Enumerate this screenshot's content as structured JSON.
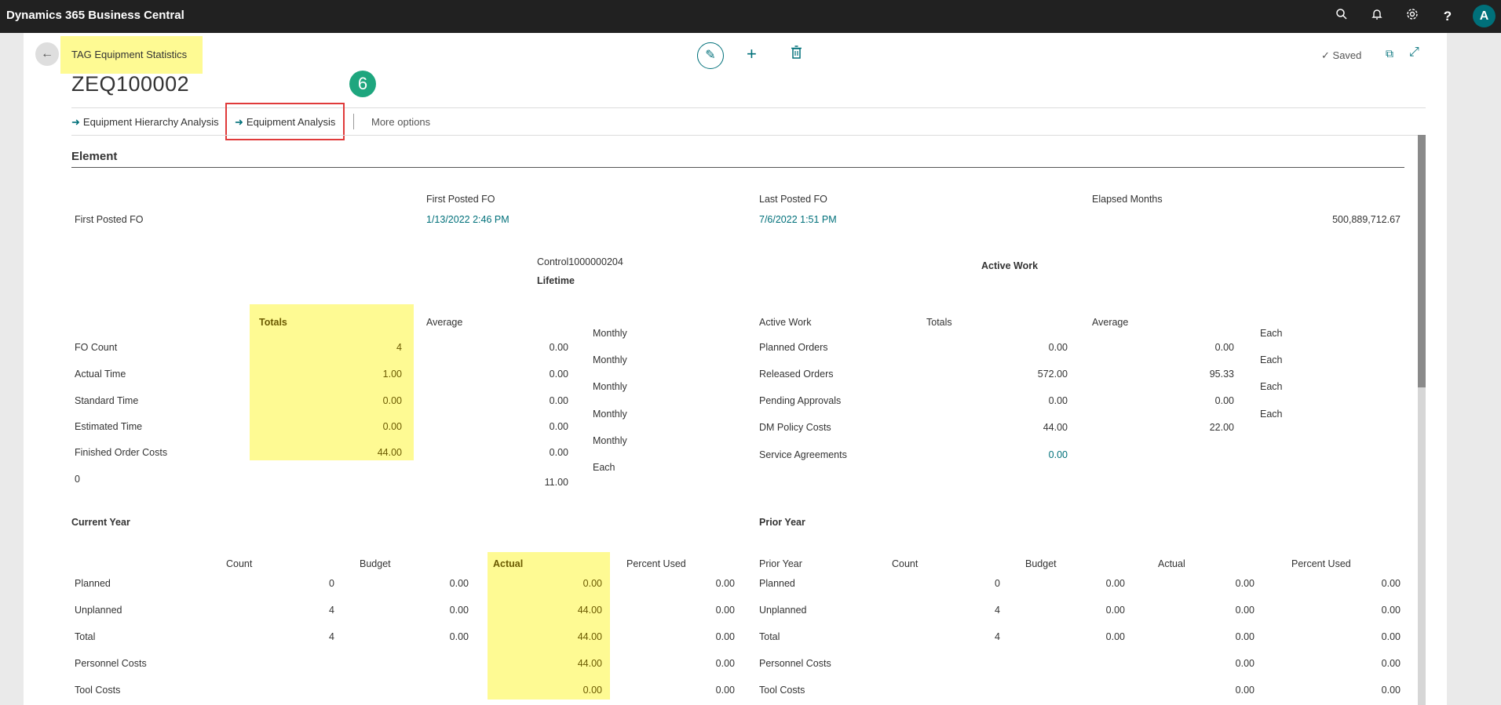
{
  "app": {
    "title": "Dynamics 365 Business Central"
  },
  "topbar_icons": [
    "search-icon",
    "bell-icon",
    "gear-icon",
    "help-icon"
  ],
  "user": {
    "initial": "A"
  },
  "page": {
    "title": "TAG Equipment Statistics",
    "record_no": "ZEQ100002",
    "saved_label": "Saved",
    "step_badge": "6"
  },
  "actions": {
    "hierarchy": "Equipment Hierarchy Analysis",
    "analysis": "Equipment Analysis",
    "more": "More options"
  },
  "element": {
    "title": "Element",
    "row_label": "First Posted FO",
    "first_posted_header": "First Posted FO",
    "first_posted_value": "1/13/2022 2:46 PM",
    "last_posted_header": "Last Posted FO",
    "last_posted_value": "7/6/2022 1:51 PM",
    "elapsed_header": "Elapsed Months",
    "elapsed_value": "500,889,712.67"
  },
  "lifetime": {
    "control": "Control1000000204",
    "title": "Lifetime",
    "totals_header": "Totals",
    "average_header": "Average",
    "rows": [
      {
        "label": "FO Count",
        "total": "4",
        "avg": "0.00",
        "period": "Monthly"
      },
      {
        "label": "Actual Time",
        "total": "1.00",
        "avg": "0.00",
        "period": "Monthly"
      },
      {
        "label": "Standard Time",
        "total": "0.00",
        "avg": "0.00",
        "period": "Monthly"
      },
      {
        "label": "Estimated Time",
        "total": "0.00",
        "avg": "0.00",
        "period": "Monthly"
      },
      {
        "label": "Finished Order Costs",
        "total": "44.00",
        "avg": "0.00",
        "period": "Monthly"
      },
      {
        "label": "0",
        "total": "",
        "avg": "11.00",
        "period": "Each"
      }
    ]
  },
  "active_work": {
    "title": "Active Work",
    "col_label": "Active Work",
    "totals_header": "Totals",
    "average_header": "Average",
    "rows": [
      {
        "label": "Planned Orders",
        "total": "0.00",
        "avg": "0.00",
        "period": "Each"
      },
      {
        "label": "Released Orders",
        "total": "572.00",
        "avg": "95.33",
        "period": "Each"
      },
      {
        "label": "Pending Approvals",
        "total": "0.00",
        "avg": "0.00",
        "period": "Each"
      },
      {
        "label": "DM Policy Costs",
        "total": "44.00",
        "avg": "22.00",
        "period": "Each"
      },
      {
        "label": "Service Agreements",
        "total": "0.00",
        "avg": "",
        "period": ""
      }
    ]
  },
  "current_year": {
    "title": "Current Year",
    "headers": {
      "count": "Count",
      "budget": "Budget",
      "actual": "Actual",
      "percent": "Percent Used"
    },
    "rows": [
      {
        "label": "Planned",
        "count": "0",
        "budget": "0.00",
        "actual": "0.00",
        "percent": "0.00"
      },
      {
        "label": "Unplanned",
        "count": "4",
        "budget": "0.00",
        "actual": "44.00",
        "percent": "0.00"
      },
      {
        "label": "Total",
        "count": "4",
        "budget": "0.00",
        "actual": "44.00",
        "percent": "0.00"
      },
      {
        "label": "Personnel Costs",
        "count": "",
        "budget": "",
        "actual": "44.00",
        "percent": "0.00"
      },
      {
        "label": "Tool Costs",
        "count": "",
        "budget": "",
        "actual": "0.00",
        "percent": "0.00"
      }
    ]
  },
  "prior_year": {
    "title": "Prior Year",
    "headers": {
      "label": "Prior Year",
      "count": "Count",
      "budget": "Budget",
      "actual": "Actual",
      "percent": "Percent Used"
    },
    "rows": [
      {
        "label": "Planned",
        "count": "0",
        "budget": "0.00",
        "actual": "0.00",
        "percent": "0.00"
      },
      {
        "label": "Unplanned",
        "count": "4",
        "budget": "0.00",
        "actual": "0.00",
        "percent": "0.00"
      },
      {
        "label": "Total",
        "count": "4",
        "budget": "0.00",
        "actual": "0.00",
        "percent": "0.00"
      },
      {
        "label": "Personnel Costs",
        "count": "",
        "budget": "",
        "actual": "0.00",
        "percent": "0.00"
      },
      {
        "label": "Tool Costs",
        "count": "",
        "budget": "",
        "actual": "0.00",
        "percent": "0.00"
      }
    ]
  },
  "colors": {
    "accent": "#00707a",
    "highlight": "#fefa93",
    "callout": "#e03a3a",
    "badge": "#1ea67e"
  }
}
